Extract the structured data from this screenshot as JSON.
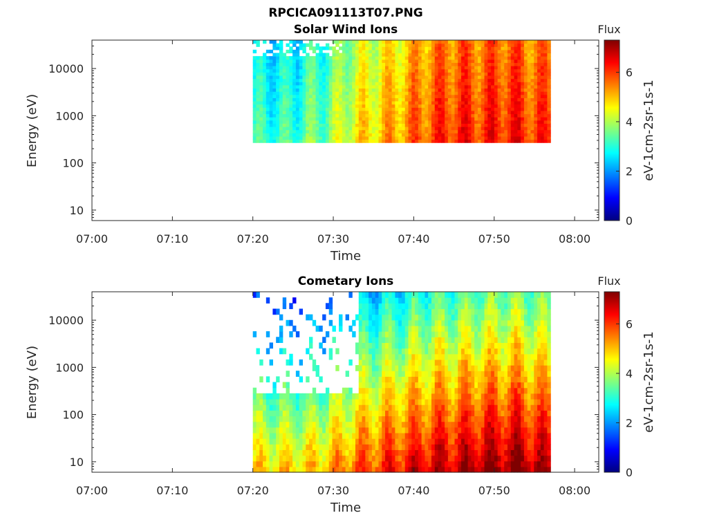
{
  "figure": {
    "title": "RPCICA091113T07.PNG"
  },
  "chart_data": [
    {
      "type": "heatmap",
      "title": "Solar Wind Ions",
      "xlabel": "Time",
      "ylabel": "Energy (eV)",
      "x_ticks": [
        "07:00",
        "07:10",
        "07:20",
        "07:30",
        "07:40",
        "07:50",
        "08:00"
      ],
      "x_range": [
        "07:00",
        "08:03"
      ],
      "y_scale": "log",
      "y_ticks": [
        "10",
        "100",
        "1000",
        "10000"
      ],
      "y_range": [
        6,
        40000
      ],
      "data_time_range": [
        "07:20",
        "07:57"
      ],
      "data_energy_range": [
        270,
        40000
      ],
      "colorbar": {
        "title": "Flux",
        "ticks": [
          "0",
          "2",
          "4",
          "6"
        ],
        "range": [
          0,
          7.3
        ],
        "label": "eV-1cm-2sr-1s-1",
        "colormap": "jet"
      },
      "flux_profile_by_time": [
        [
          "07:20",
          3.0
        ],
        [
          "07:22",
          3.2
        ],
        [
          "07:24",
          3.1
        ],
        [
          "07:26",
          3.4
        ],
        [
          "07:28",
          3.6
        ],
        [
          "07:30",
          3.9
        ],
        [
          "07:32",
          4.5
        ],
        [
          "07:34",
          4.8
        ],
        [
          "07:36",
          5.0
        ],
        [
          "07:38",
          5.3
        ],
        [
          "07:40",
          5.6
        ],
        [
          "07:42",
          5.9
        ],
        [
          "07:44",
          6.1
        ],
        [
          "07:46",
          6.2
        ],
        [
          "07:48",
          6.1
        ],
        [
          "07:50",
          6.2
        ],
        [
          "07:52",
          6.3
        ],
        [
          "07:54",
          6.1
        ],
        [
          "07:56",
          6.0
        ]
      ]
    },
    {
      "type": "heatmap",
      "title": "Cometary Ions",
      "xlabel": "Time",
      "ylabel": "Energy (eV)",
      "x_ticks": [
        "07:00",
        "07:10",
        "07:20",
        "07:30",
        "07:40",
        "07:50",
        "08:00"
      ],
      "x_range": [
        "07:00",
        "08:03"
      ],
      "y_scale": "log",
      "y_ticks": [
        "10",
        "100",
        "1000",
        "10000"
      ],
      "y_range": [
        6,
        40000
      ],
      "data_time_range": [
        "07:20",
        "07:57"
      ],
      "data_energy_range": [
        6,
        40000
      ],
      "colorbar": {
        "title": "Flux",
        "ticks": [
          "0",
          "2",
          "4",
          "6"
        ],
        "range": [
          0,
          7.3
        ],
        "label": "eV-1cm-2sr-1s-1",
        "colormap": "jet"
      },
      "flux_profile_by_time": [
        [
          "07:20",
          4.8
        ],
        [
          "07:22",
          4.9
        ],
        [
          "07:24",
          4.8
        ],
        [
          "07:26",
          4.9
        ],
        [
          "07:28",
          5.0
        ],
        [
          "07:30",
          5.3
        ],
        [
          "07:32",
          5.6
        ],
        [
          "07:34",
          5.9
        ],
        [
          "07:36",
          6.1
        ],
        [
          "07:38",
          6.3
        ],
        [
          "07:40",
          6.5
        ],
        [
          "07:42",
          6.7
        ],
        [
          "07:44",
          6.8
        ],
        [
          "07:46",
          6.9
        ],
        [
          "07:48",
          7.0
        ],
        [
          "07:50",
          7.1
        ],
        [
          "07:52",
          7.2
        ],
        [
          "07:54",
          7.1
        ],
        [
          "07:56",
          6.9
        ]
      ]
    }
  ]
}
